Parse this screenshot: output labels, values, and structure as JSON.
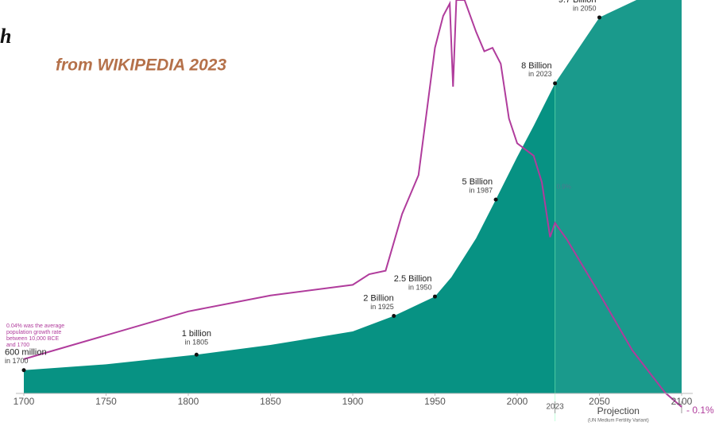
{
  "chart_data": {
    "type": "area",
    "title": "from WIKIPEDIA 2023",
    "corner_text": "h",
    "xlim": [
      1700,
      2100
    ],
    "xticks": [
      1700,
      1750,
      1800,
      1850,
      1900,
      1950,
      2000,
      2050,
      2100
    ],
    "ylim": [
      0,
      10.15
    ],
    "y2lim": [
      -0.1,
      2.2
    ],
    "series": [
      {
        "color": "#079283",
        "x": [
          1700,
          1750,
          1805,
          1850,
          1900,
          1925,
          1950,
          1960,
          1975,
          1987,
          2000,
          2010,
          2023,
          2050,
          2080,
          2100
        ],
        "values": [
          0.6,
          0.75,
          1.0,
          1.25,
          1.6,
          2.0,
          2.5,
          3.0,
          4.0,
          5.0,
          6.1,
          6.9,
          8.0,
          9.7,
          10.3,
          10.4
        ]
      },
      {
        "color": "#b03c9c",
        "axis": "y2",
        "x": [
          1700,
          1800,
          1850,
          1900,
          1910,
          1920,
          1930,
          1940,
          1950,
          1955,
          1959,
          1961,
          1963,
          1968,
          1975,
          1980,
          1985,
          1990,
          1995,
          2000,
          2010,
          2015,
          2020,
          2023,
          2030,
          2050,
          2070,
          2090,
          2100
        ],
        "values": [
          0.17,
          0.44,
          0.53,
          0.59,
          0.65,
          0.67,
          0.99,
          1.21,
          1.93,
          2.11,
          2.18,
          1.71,
          2.2,
          2.2,
          2.02,
          1.91,
          1.93,
          1.84,
          1.53,
          1.39,
          1.32,
          1.17,
          0.86,
          0.94,
          0.85,
          0.54,
          0.22,
          -0.02,
          -0.1
        ],
        "value_labels": [
          null,
          null,
          null,
          null,
          null,
          null,
          null,
          null,
          null,
          null,
          null,
          null,
          null,
          null,
          null,
          null,
          null,
          null,
          null,
          null,
          null,
          null,
          null,
          "0.9%",
          null,
          null,
          null,
          null,
          "- 0.1%"
        ]
      }
    ],
    "annotations": [
      {
        "text": "600 million",
        "sub": "in 1700",
        "x": 1700,
        "value": 0.6
      },
      {
        "text": "1 billion",
        "sub": "in 1805",
        "x": 1805,
        "value": 1.0
      },
      {
        "text": "2 Billion",
        "sub": "in 1925",
        "x": 1925,
        "value": 2.0
      },
      {
        "text": "2.5 Billion",
        "sub": "in 1950",
        "x": 1950,
        "value": 2.5
      },
      {
        "text": "5 Billion",
        "sub": "in 1987",
        "x": 1987,
        "value": 5.0
      },
      {
        "text": "8 Billion",
        "sub": "in 2023",
        "x": 2023,
        "value": 8.0
      },
      {
        "text": "9.7 Billion",
        "sub": "in 2050",
        "x": 2050,
        "value": 9.7
      }
    ],
    "growth_note": [
      "0.04% was the average",
      "population growth rate",
      "between 10,000 BCE",
      "and 1700"
    ],
    "projection": {
      "start": 2023,
      "label": "Projection",
      "note": "(UN Medium Fertility Variant)"
    }
  }
}
